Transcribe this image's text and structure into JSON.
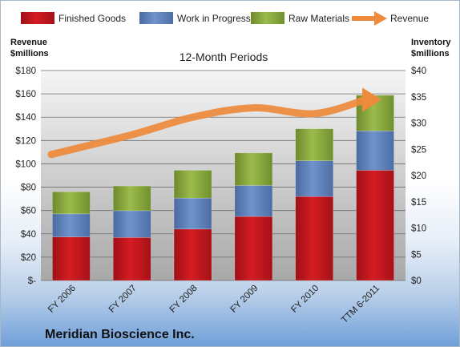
{
  "chart_data": {
    "type": "bar",
    "title": "",
    "subtitle": "12-Month Periods",
    "company": "Meridian Bioscience Inc.",
    "categories": [
      "FY 2006",
      "FY 2007",
      "FY 2008",
      "FY 2009",
      "FY 2010",
      "TTM 6-2011"
    ],
    "inventory_series": [
      {
        "name": "Finished Goods",
        "color": "#c0141b",
        "values": [
          8.3,
          8.2,
          9.8,
          12.2,
          16.0,
          21.0
        ]
      },
      {
        "name": "Work in Progress",
        "color": "#5a7fb8",
        "values": [
          4.4,
          5.1,
          5.9,
          5.9,
          6.8,
          7.5
        ]
      },
      {
        "name": "Raw Materials",
        "color": "#8aaa3c",
        "values": [
          4.2,
          4.7,
          5.3,
          6.2,
          6.1,
          6.8
        ]
      }
    ],
    "revenue_series": {
      "name": "Revenue",
      "color": "#ee8a3c",
      "values": [
        108,
        125,
        140,
        148,
        143,
        155
      ]
    },
    "left_axis": {
      "label_line1": "Revenue",
      "label_line2": "$millions",
      "min": 0,
      "max": 180,
      "step": 20,
      "tick_labels": [
        "$-",
        "$20",
        "$40",
        "$60",
        "$80",
        "$100",
        "$120",
        "$140",
        "$160",
        "$180"
      ]
    },
    "right_axis": {
      "label_line1": "Inventory",
      "label_line2": "$millions",
      "min": 0,
      "max": 40,
      "step": 5,
      "tick_labels": [
        "$0",
        "$5",
        "$10",
        "$15",
        "$20",
        "$25",
        "$30",
        "$35",
        "$40"
      ]
    },
    "legend_position": "top",
    "grid": true
  }
}
